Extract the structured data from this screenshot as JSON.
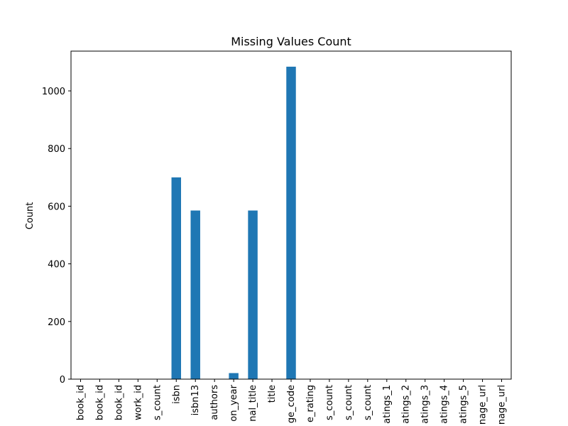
{
  "chart_data": {
    "type": "bar",
    "title": "Missing Values Count",
    "xlabel": "",
    "ylabel": "Count",
    "ylim": [
      0,
      1138
    ],
    "yticks": [
      0,
      200,
      400,
      600,
      800,
      1000
    ],
    "grid": false,
    "legend": "none",
    "bar_color": "#1f77b4",
    "categories": [
      "book_id",
      "book_id",
      "book_id",
      "work_id",
      "s_count",
      "isbn",
      "isbn13",
      "authors",
      "on_year",
      "nal_title",
      "title",
      "ge_code",
      "e_rating",
      "s_count",
      "s_count",
      "s_count",
      "atings_1",
      "atings_2",
      "atings_3",
      "atings_4",
      "atings_5",
      "nage_url",
      "nage_url"
    ],
    "values": [
      0,
      0,
      0,
      0,
      0,
      700,
      585,
      0,
      21,
      585,
      0,
      1084,
      0,
      0,
      0,
      0,
      0,
      0,
      0,
      0,
      0,
      0,
      0
    ]
  }
}
